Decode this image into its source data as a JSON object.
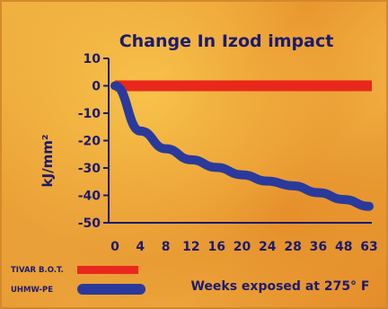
{
  "chart_data": {
    "type": "line",
    "title": "Change In Izod impact",
    "ylabel": "kJ/mm²",
    "xlabel": "Weeks exposed at 275° F",
    "ylim": [
      -50,
      10
    ],
    "yticks": [
      10,
      0,
      -10,
      -20,
      -30,
      -40,
      -50
    ],
    "categories": [
      "0",
      "4",
      "8",
      "12",
      "16",
      "20",
      "24",
      "28",
      "36",
      "48",
      "63"
    ],
    "grid": false,
    "legend_position": "bottom-left",
    "series": [
      {
        "name": "TIVAR B.O.T.",
        "color": "#e8281c",
        "values": [
          0,
          0,
          0,
          0,
          0,
          0,
          0,
          0,
          0,
          0,
          0
        ]
      },
      {
        "name": "UHMW-PE",
        "color": "#2a3a9c",
        "values": [
          0,
          -16.5,
          -23,
          -27,
          -29.8,
          -32.5,
          -34.8,
          -36.5,
          -39,
          -41.5,
          -44
        ]
      }
    ]
  }
}
